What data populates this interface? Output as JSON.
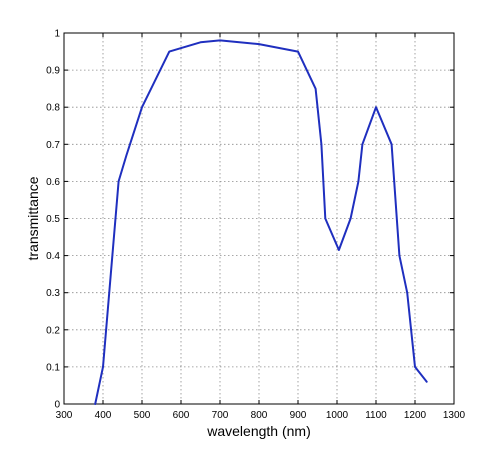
{
  "chart_data": {
    "type": "line",
    "title": "",
    "xlabel": "wavelength (nm)",
    "ylabel": "transmittance",
    "xlim": [
      300,
      1300
    ],
    "ylim": [
      0,
      1
    ],
    "xticks": [
      300,
      400,
      500,
      600,
      700,
      800,
      900,
      1000,
      1100,
      1200,
      1300
    ],
    "yticks": [
      0,
      0.1,
      0.2,
      0.3,
      0.4,
      0.5,
      0.6,
      0.7,
      0.8,
      0.9,
      1
    ],
    "ytick_labels": [
      "0",
      "0.1",
      "0.2",
      "0.3",
      "0.4",
      "0.5",
      "0.6",
      "0.7",
      "0.8",
      "0.9",
      "1"
    ],
    "grid": true,
    "line_color": "#1f2fbf",
    "series": [
      {
        "x": [
          380,
          400,
          420,
          440,
          460,
          500,
          570,
          650,
          700,
          800,
          900,
          945,
          960,
          970,
          1005,
          1035,
          1055,
          1065,
          1100,
          1140,
          1160,
          1180,
          1190,
          1200,
          1230
        ],
        "y": [
          0,
          0.1,
          0.35,
          0.6,
          0.67,
          0.8,
          0.95,
          0.975,
          0.98,
          0.97,
          0.95,
          0.85,
          0.7,
          0.5,
          0.415,
          0.5,
          0.6,
          0.7,
          0.8,
          0.7,
          0.4,
          0.3,
          0.2,
          0.1,
          0.06
        ]
      }
    ]
  }
}
